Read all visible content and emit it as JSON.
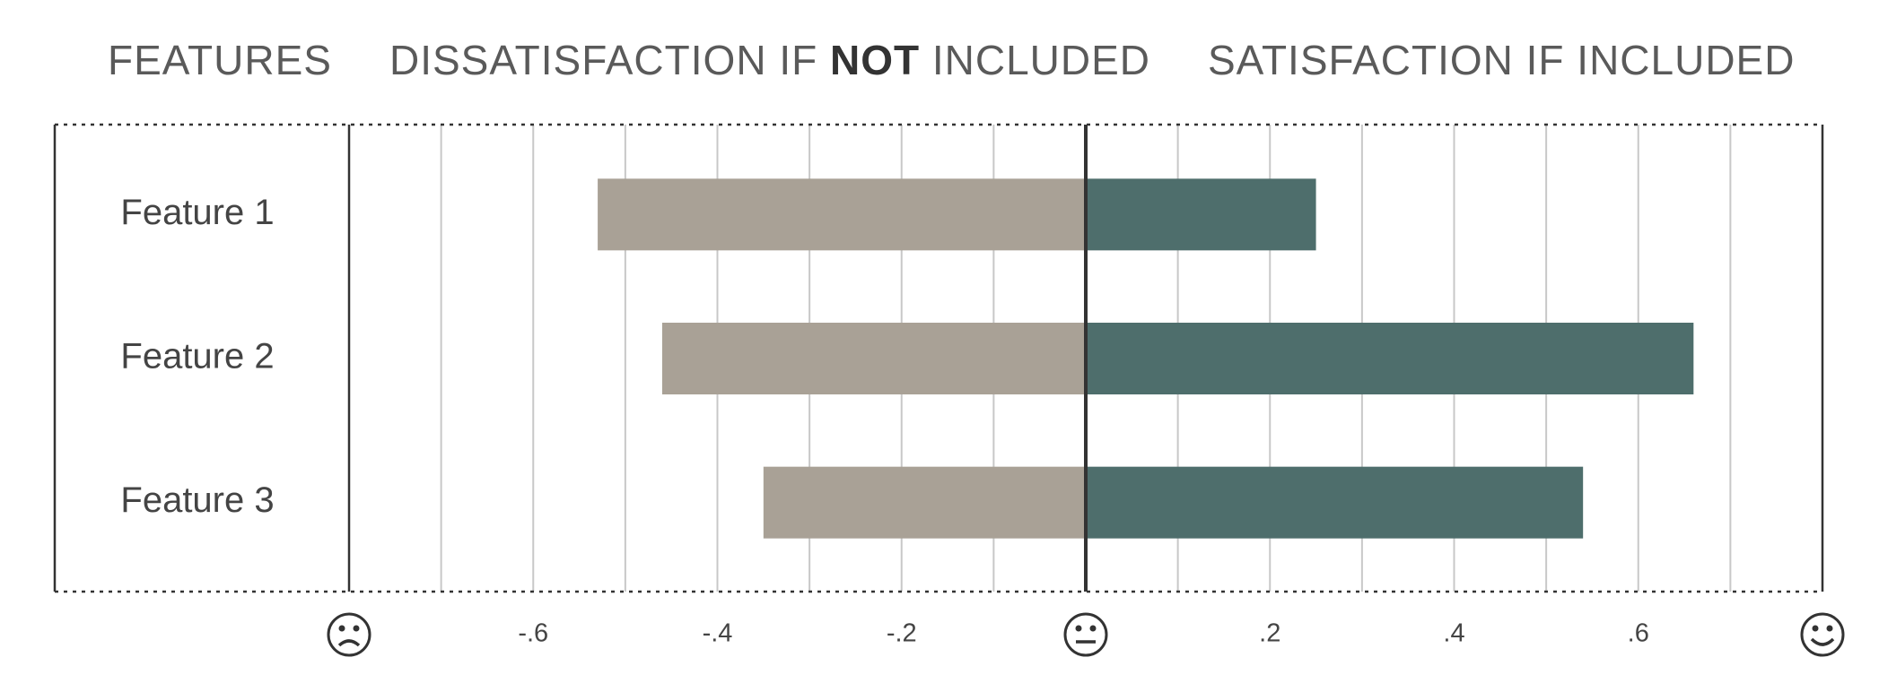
{
  "headers": {
    "features": "FEATURES",
    "dissatisfaction": {
      "before": "DISSATISFACTION IF",
      "bold": "NOT",
      "after": "INCLUDED"
    },
    "satisfaction": "SATISFACTION IF INCLUDED"
  },
  "chart_data": {
    "type": "diverging-bar",
    "categories": [
      "Feature 1",
      "Feature 2",
      "Feature 3"
    ],
    "series": [
      {
        "color": "#a9a196",
        "values": [
          -0.53,
          -0.46,
          -0.35
        ]
      },
      {
        "color": "#4e6e6c",
        "values": [
          0.25,
          0.66,
          0.54
        ]
      }
    ],
    "xlim": [
      -0.8,
      0.8
    ],
    "xticks": [
      {
        "value": -0.6,
        "label": "-.6"
      },
      {
        "value": -0.4,
        "label": "-.4"
      },
      {
        "value": -0.2,
        "label": "-.2"
      },
      {
        "value": 0.2,
        "label": ".2"
      },
      {
        "value": 0.4,
        "label": ".4"
      },
      {
        "value": 0.6,
        "label": ".6"
      }
    ],
    "x_minor_ticks": [
      -0.7,
      -0.5,
      -0.3,
      -0.1,
      0.1,
      0.3,
      0.5,
      0.7
    ],
    "grid": true
  }
}
